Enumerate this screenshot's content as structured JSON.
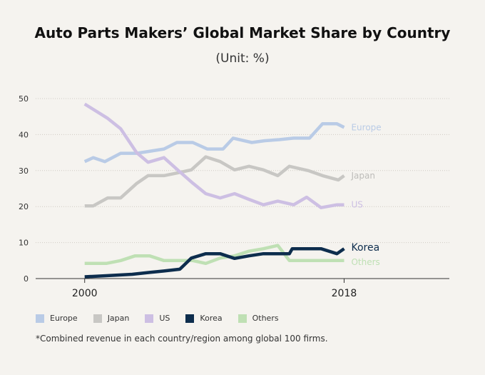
{
  "chart_data": {
    "type": "line",
    "title": "Auto Parts Makers’ Global Market Share by Country",
    "subtitle": "(Unit: %)",
    "xlabel": "",
    "ylabel": "",
    "x_start": 2000,
    "x_end": 2018,
    "xlim": [
      1996.6,
      2025.3
    ],
    "ylim": [
      0,
      50
    ],
    "yticks": [
      0,
      10,
      20,
      30,
      40,
      50
    ],
    "xticks": [
      "2000",
      "2018"
    ],
    "grid": "horizontal-dotted",
    "footnote": "*Combined revenue in each country/region among global 100 firms.",
    "series": [
      {
        "name": "Europe",
        "color": "#b9cbe6",
        "label_weight": "normal",
        "points": [
          [
            2000,
            32.5
          ],
          [
            2000.6,
            33.6
          ],
          [
            2001.4,
            32.5
          ],
          [
            2002.5,
            34.8
          ],
          [
            2003.6,
            34.8
          ],
          [
            2004.4,
            35.3
          ],
          [
            2005.5,
            36
          ],
          [
            2006.4,
            37.8
          ],
          [
            2007.5,
            37.8
          ],
          [
            2008.5,
            36
          ],
          [
            2009.6,
            36
          ],
          [
            2010.3,
            39
          ],
          [
            2011.6,
            37.8
          ],
          [
            2012.5,
            38.3
          ],
          [
            2013.5,
            38.6
          ],
          [
            2014.5,
            39
          ],
          [
            2015.6,
            39
          ],
          [
            2016.5,
            43
          ],
          [
            2017.5,
            43
          ],
          [
            2018,
            42
          ]
        ]
      },
      {
        "name": "Japan",
        "color": "#c8c7c4",
        "label_weight": "normal",
        "points": [
          [
            2000,
            20.2
          ],
          [
            2000.6,
            20.2
          ],
          [
            2001.6,
            22.4
          ],
          [
            2002.5,
            22.4
          ],
          [
            2003.6,
            26.4
          ],
          [
            2004.4,
            28.6
          ],
          [
            2005.5,
            28.6
          ],
          [
            2006.5,
            29.4
          ],
          [
            2007.4,
            30.2
          ],
          [
            2008.4,
            33.8
          ],
          [
            2009.4,
            32.5
          ],
          [
            2010.4,
            30.2
          ],
          [
            2011.4,
            31.2
          ],
          [
            2012.4,
            30.2
          ],
          [
            2013.4,
            28.6
          ],
          [
            2014.2,
            31.2
          ],
          [
            2015.5,
            30
          ],
          [
            2016.5,
            28.6
          ],
          [
            2017.6,
            27.4
          ],
          [
            2018,
            28.6
          ]
        ]
      },
      {
        "name": "US",
        "color": "#cdbfe3",
        "label_weight": "normal",
        "points": [
          [
            2000,
            48.5
          ],
          [
            2000.6,
            47
          ],
          [
            2001.6,
            44.5
          ],
          [
            2002.5,
            41.6
          ],
          [
            2003.6,
            35
          ],
          [
            2004.4,
            32.3
          ],
          [
            2005.5,
            33.6
          ],
          [
            2006.5,
            30
          ],
          [
            2007.5,
            26.5
          ],
          [
            2008.4,
            23.6
          ],
          [
            2009.4,
            22.4
          ],
          [
            2010.4,
            23.6
          ],
          [
            2011.4,
            22
          ],
          [
            2012.4,
            20.5
          ],
          [
            2013.4,
            21.5
          ],
          [
            2014.5,
            20.5
          ],
          [
            2015.4,
            22.6
          ],
          [
            2016.4,
            19.7
          ],
          [
            2017.5,
            20.5
          ],
          [
            2018,
            20.5
          ]
        ]
      },
      {
        "name": "Korea",
        "color": "#0d2d4d",
        "label_weight": "bold",
        "points": [
          [
            2000,
            0.5
          ],
          [
            2001.5,
            0.8
          ],
          [
            2003.3,
            1.2
          ],
          [
            2004.5,
            1.7
          ],
          [
            2005.5,
            2.1
          ],
          [
            2006.6,
            2.6
          ],
          [
            2007.4,
            5.7
          ],
          [
            2008.4,
            6.9
          ],
          [
            2009.4,
            6.9
          ],
          [
            2010.4,
            5.6
          ],
          [
            2011.4,
            6.3
          ],
          [
            2012.4,
            6.9
          ],
          [
            2013.5,
            6.9
          ],
          [
            2014.2,
            6.9
          ],
          [
            2014.4,
            8.3
          ],
          [
            2015.5,
            8.3
          ],
          [
            2016.4,
            8.3
          ],
          [
            2017.5,
            6.9
          ],
          [
            2018,
            8.3
          ]
        ]
      },
      {
        "name": "Others",
        "color": "#bfe0b4",
        "label_weight": "normal",
        "points": [
          [
            2000,
            4.2
          ],
          [
            2001.5,
            4.2
          ],
          [
            2002.5,
            5
          ],
          [
            2003.5,
            6.3
          ],
          [
            2004.5,
            6.3
          ],
          [
            2005.5,
            5
          ],
          [
            2006.4,
            5
          ],
          [
            2007.5,
            5
          ],
          [
            2008.4,
            4.2
          ],
          [
            2009.4,
            5.7
          ],
          [
            2010.4,
            6.3
          ],
          [
            2011.4,
            7.6
          ],
          [
            2012.4,
            8.3
          ],
          [
            2013.4,
            9.2
          ],
          [
            2014.2,
            5
          ],
          [
            2015.4,
            5
          ],
          [
            2016.4,
            5
          ],
          [
            2017.5,
            5
          ],
          [
            2018,
            5
          ]
        ]
      }
    ]
  }
}
